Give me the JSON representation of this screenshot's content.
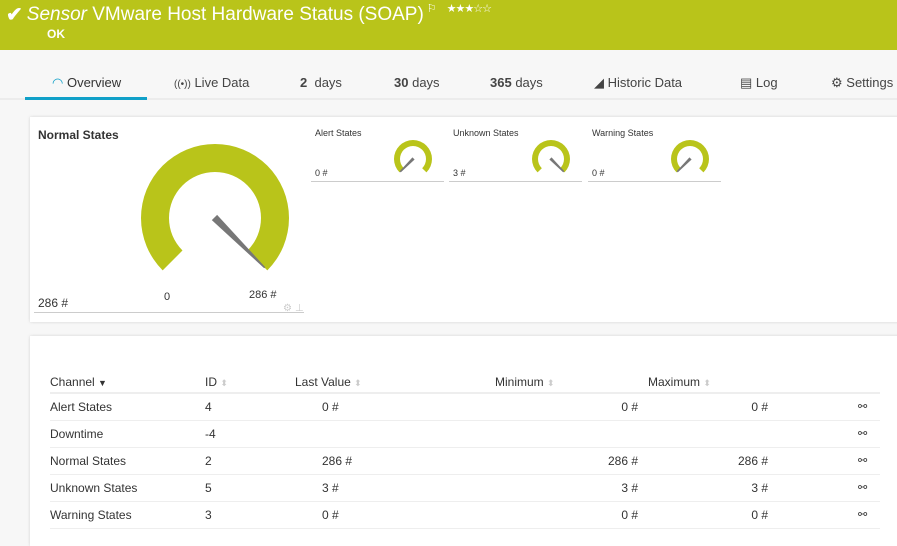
{
  "header": {
    "prefix": "Sensor",
    "title": "VMware Host Hardware Status (SOAP)",
    "status": "OK",
    "stars": "★★★☆☆",
    "rating": 3,
    "color": "#b9c41a"
  },
  "tabs": [
    {
      "label": "Overview",
      "icon": "gauge-icon"
    },
    {
      "label": "Live Data",
      "icon": "broadcast-icon"
    },
    {
      "num": "2",
      "label": "days"
    },
    {
      "num": "30",
      "label": "days"
    },
    {
      "num": "365",
      "label": "days"
    },
    {
      "label": "Historic Data",
      "icon": "area-chart-icon"
    },
    {
      "label": "Log",
      "icon": "list-icon"
    },
    {
      "label": "Settings",
      "icon": "gear-icon"
    }
  ],
  "gauges": {
    "main": {
      "title": "Normal States",
      "value": "286 #",
      "min": "0",
      "max": "286 #",
      "level": 1
    },
    "small": [
      {
        "title": "Alert States",
        "value": "0 #",
        "level": 0
      },
      {
        "title": "Unknown States",
        "value": "3 #",
        "level": 1
      },
      {
        "title": "Warning States",
        "value": "0 #",
        "level": 0
      }
    ]
  },
  "table": {
    "headers": [
      "Channel",
      "ID",
      "Last Value",
      "Minimum",
      "Maximum"
    ],
    "rows": [
      [
        "Alert States",
        "4",
        "0 #",
        "0 #",
        "0 #"
      ],
      [
        "Downtime",
        "-4",
        "",
        "",
        ""
      ],
      [
        "Normal States",
        "2",
        "286 #",
        "286 #",
        "286 #"
      ],
      [
        "Unknown States",
        "5",
        "3 #",
        "3 #",
        "3 #"
      ],
      [
        "Warning States",
        "3",
        "0 #",
        "0 #",
        "0 #"
      ]
    ]
  }
}
